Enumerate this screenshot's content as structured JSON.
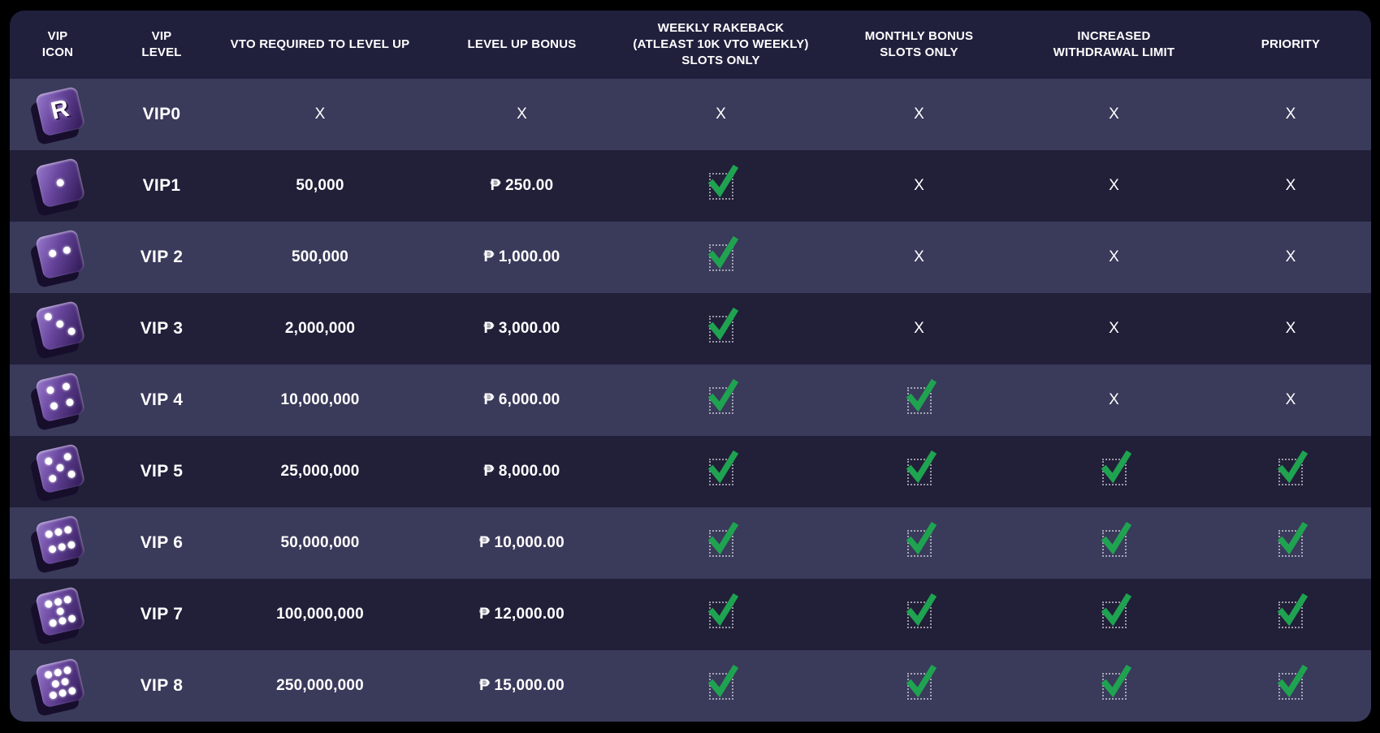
{
  "page": {
    "background": "#000000"
  },
  "table": {
    "colors": {
      "header_bg": "#20203D",
      "row_light": "#3A3A5B",
      "row_dark": "#221F39",
      "text": "#FFFFFF",
      "check_green": "#1FA350",
      "checkbox_border": "rgba(255,255,255,0.55)"
    },
    "die_letter": "R",
    "marks": {
      "yes": "check",
      "no": "X"
    },
    "columns": [
      {
        "id": "icon",
        "label": "VIP\nICON"
      },
      {
        "id": "level",
        "label": "VIP\nLEVEL"
      },
      {
        "id": "vto",
        "label": "VTO REQUIRED TO LEVEL UP"
      },
      {
        "id": "bonus",
        "label": "LEVEL UP BONUS"
      },
      {
        "id": "weekly",
        "label": "WEEKLY RAKEBACK\n(ATLEAST 10K VTO WEEKLY)\nSLOTS ONLY"
      },
      {
        "id": "monthly",
        "label": "MONTHLY BONUS\nSLOTS ONLY"
      },
      {
        "id": "withdrawal",
        "label": "INCREASED\nWITHDRAWAL LIMIT"
      },
      {
        "id": "priority",
        "label": "PRIORITY"
      }
    ],
    "rows": [
      {
        "level": "VIP0",
        "die": "R",
        "vto": "x",
        "bonus": "x",
        "weekly": "x",
        "monthly": "x",
        "withdrawal": "x",
        "priority": "x"
      },
      {
        "level": "VIP1",
        "die": 1,
        "vto": "50,000",
        "bonus": "₱ 250.00",
        "weekly": "check",
        "monthly": "x",
        "withdrawal": "x",
        "priority": "x"
      },
      {
        "level": "VIP 2",
        "die": 2,
        "vto": "500,000",
        "bonus": "₱ 1,000.00",
        "weekly": "check",
        "monthly": "x",
        "withdrawal": "x",
        "priority": "x"
      },
      {
        "level": "VIP 3",
        "die": 3,
        "vto": "2,000,000",
        "bonus": "₱ 3,000.00",
        "weekly": "check",
        "monthly": "x",
        "withdrawal": "x",
        "priority": "x"
      },
      {
        "level": "VIP 4",
        "die": 4,
        "vto": "10,000,000",
        "bonus": "₱ 6,000.00",
        "weekly": "check",
        "monthly": "check",
        "withdrawal": "x",
        "priority": "x"
      },
      {
        "level": "VIP 5",
        "die": 5,
        "vto": "25,000,000",
        "bonus": "₱ 8,000.00",
        "weekly": "check",
        "monthly": "check",
        "withdrawal": "check",
        "priority": "check"
      },
      {
        "level": "VIP 6",
        "die": 6,
        "vto": "50,000,000",
        "bonus": "₱ 10,000.00",
        "weekly": "check",
        "monthly": "check",
        "withdrawal": "check",
        "priority": "check"
      },
      {
        "level": "VIP 7",
        "die": 7,
        "vto": "100,000,000",
        "bonus": "₱ 12,000.00",
        "weekly": "check",
        "monthly": "check",
        "withdrawal": "check",
        "priority": "check"
      },
      {
        "level": "VIP 8",
        "die": 8,
        "vto": "250,000,000",
        "bonus": "₱ 15,000.00",
        "weekly": "check",
        "monthly": "check",
        "withdrawal": "check",
        "priority": "check"
      }
    ]
  }
}
